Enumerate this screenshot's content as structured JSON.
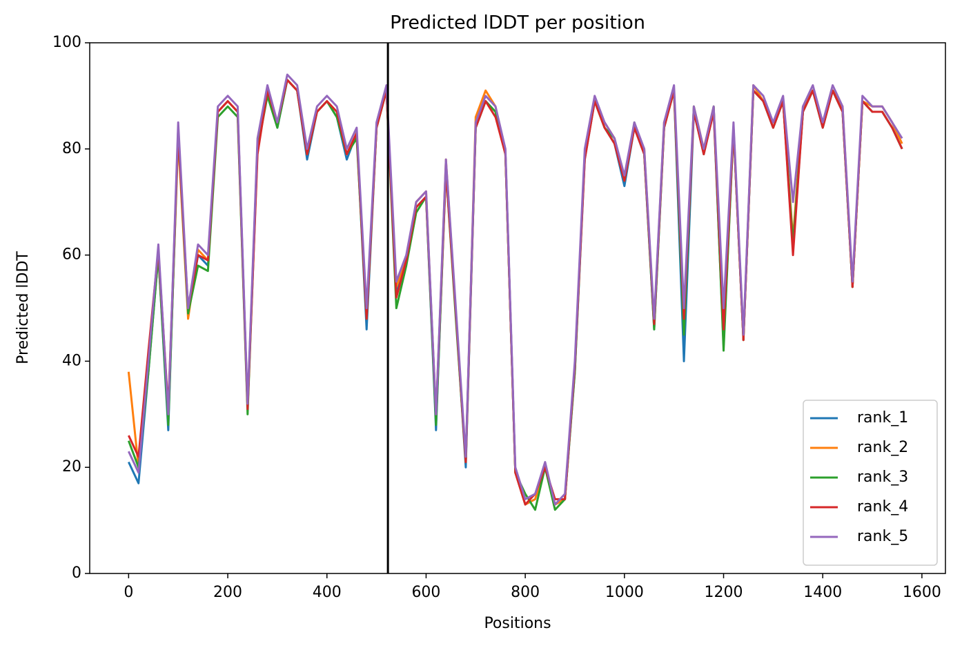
{
  "chart_data": {
    "type": "line",
    "title": "Predicted lDDT per position",
    "xlabel": "Positions",
    "ylabel": "Predicted lDDT",
    "x": [
      0,
      20,
      40,
      60,
      80,
      100,
      120,
      140,
      160,
      180,
      200,
      220,
      240,
      260,
      280,
      300,
      320,
      340,
      360,
      380,
      400,
      420,
      440,
      460,
      480,
      500,
      520,
      540,
      560,
      580,
      600,
      620,
      640,
      660,
      680,
      700,
      720,
      740,
      760,
      780,
      800,
      820,
      840,
      860,
      880,
      900,
      920,
      940,
      960,
      980,
      1000,
      1020,
      1040,
      1060,
      1080,
      1100,
      1120,
      1140,
      1160,
      1180,
      1200,
      1220,
      1240,
      1260,
      1280,
      1300,
      1320,
      1340,
      1360,
      1380,
      1400,
      1420,
      1440,
      1460,
      1480,
      1500,
      1520,
      1540,
      1560
    ],
    "series": [
      {
        "name": "rank_1",
        "color": "#1f77b4",
        "values": [
          21,
          17,
          38,
          60,
          27,
          84,
          49,
          60,
          58,
          87,
          89,
          87,
          31,
          81,
          91,
          84,
          93,
          91,
          78,
          87,
          89,
          86,
          78,
          83,
          46,
          84,
          91,
          53,
          59,
          69,
          71,
          27,
          77,
          49,
          20,
          84,
          89,
          87,
          79,
          19,
          13,
          14,
          20,
          13,
          14,
          38,
          78,
          89,
          84,
          81,
          73,
          84,
          79,
          46,
          84,
          91,
          40,
          87,
          79,
          87,
          43,
          84,
          44,
          91,
          89,
          84,
          89,
          61,
          87,
          91,
          84,
          91,
          87,
          54,
          89,
          87,
          87,
          84,
          80
        ]
      },
      {
        "name": "rank_2",
        "color": "#ff7f0e",
        "values": [
          38,
          20,
          41,
          60,
          29,
          82,
          48,
          61,
          59,
          87,
          89,
          87,
          31,
          81,
          91,
          85,
          93,
          91,
          79,
          87,
          89,
          87,
          79,
          83,
          48,
          84,
          91,
          54,
          59,
          70,
          72,
          29,
          78,
          49,
          21,
          86,
          91,
          88,
          79,
          19,
          13,
          14,
          20,
          13,
          14,
          39,
          79,
          89,
          85,
          82,
          74,
          84,
          80,
          47,
          85,
          91,
          46,
          88,
          80,
          88,
          45,
          84,
          44,
          92,
          89,
          85,
          89,
          63,
          88,
          91,
          85,
          91,
          88,
          54,
          89,
          88,
          88,
          85,
          81
        ]
      },
      {
        "name": "rank_3",
        "color": "#2ca02c",
        "values": [
          25,
          20,
          38,
          60,
          28,
          83,
          49,
          58,
          57,
          86,
          88,
          86,
          30,
          80,
          90,
          84,
          93,
          91,
          79,
          87,
          89,
          86,
          79,
          82,
          48,
          84,
          91,
          50,
          58,
          68,
          71,
          28,
          76,
          48,
          21,
          84,
          89,
          87,
          79,
          19,
          15,
          12,
          20,
          12,
          14,
          38,
          79,
          89,
          84,
          82,
          74,
          85,
          79,
          46,
          84,
          91,
          45,
          88,
          79,
          88,
          42,
          84,
          44,
          91,
          89,
          84,
          89,
          62,
          87,
          91,
          84,
          91,
          87,
          54,
          89,
          87,
          87,
          84,
          80
        ]
      },
      {
        "name": "rank_4",
        "color": "#d62728",
        "values": [
          26,
          22,
          42,
          61,
          31,
          83,
          50,
          60,
          59,
          87,
          89,
          87,
          31,
          79,
          91,
          85,
          93,
          91,
          79,
          87,
          89,
          87,
          79,
          83,
          48,
          84,
          91,
          52,
          59,
          69,
          71,
          30,
          76,
          49,
          21,
          84,
          89,
          86,
          79,
          19,
          13,
          15,
          20,
          14,
          14,
          39,
          78,
          89,
          84,
          81,
          74,
          84,
          79,
          47,
          84,
          91,
          48,
          87,
          79,
          87,
          46,
          84,
          44,
          91,
          89,
          84,
          89,
          60,
          87,
          91,
          84,
          91,
          87,
          54,
          89,
          87,
          87,
          84,
          80
        ]
      },
      {
        "name": "rank_5",
        "color": "#9467bd",
        "values": [
          23,
          19,
          40,
          62,
          30,
          85,
          50,
          62,
          60,
          88,
          90,
          88,
          32,
          82,
          92,
          85,
          94,
          92,
          80,
          88,
          90,
          88,
          80,
          84,
          50,
          85,
          92,
          55,
          60,
          70,
          72,
          30,
          78,
          50,
          22,
          85,
          90,
          88,
          80,
          20,
          14,
          15,
          21,
          13,
          15,
          40,
          80,
          90,
          85,
          82,
          75,
          85,
          80,
          48,
          85,
          92,
          50,
          88,
          80,
          88,
          50,
          85,
          45,
          92,
          90,
          85,
          90,
          70,
          88,
          92,
          85,
          92,
          88,
          55,
          90,
          88,
          88,
          85,
          82
        ]
      }
    ],
    "vlines": [
      523
    ],
    "xlim": [
      -78.45,
      1647.45
    ],
    "xticks": [
      0,
      200,
      400,
      600,
      800,
      1000,
      1200,
      1400,
      1600
    ],
    "ylim": [
      0,
      100
    ],
    "yticks": [
      0,
      20,
      40,
      60,
      80,
      100
    ],
    "legend": "lower right"
  }
}
